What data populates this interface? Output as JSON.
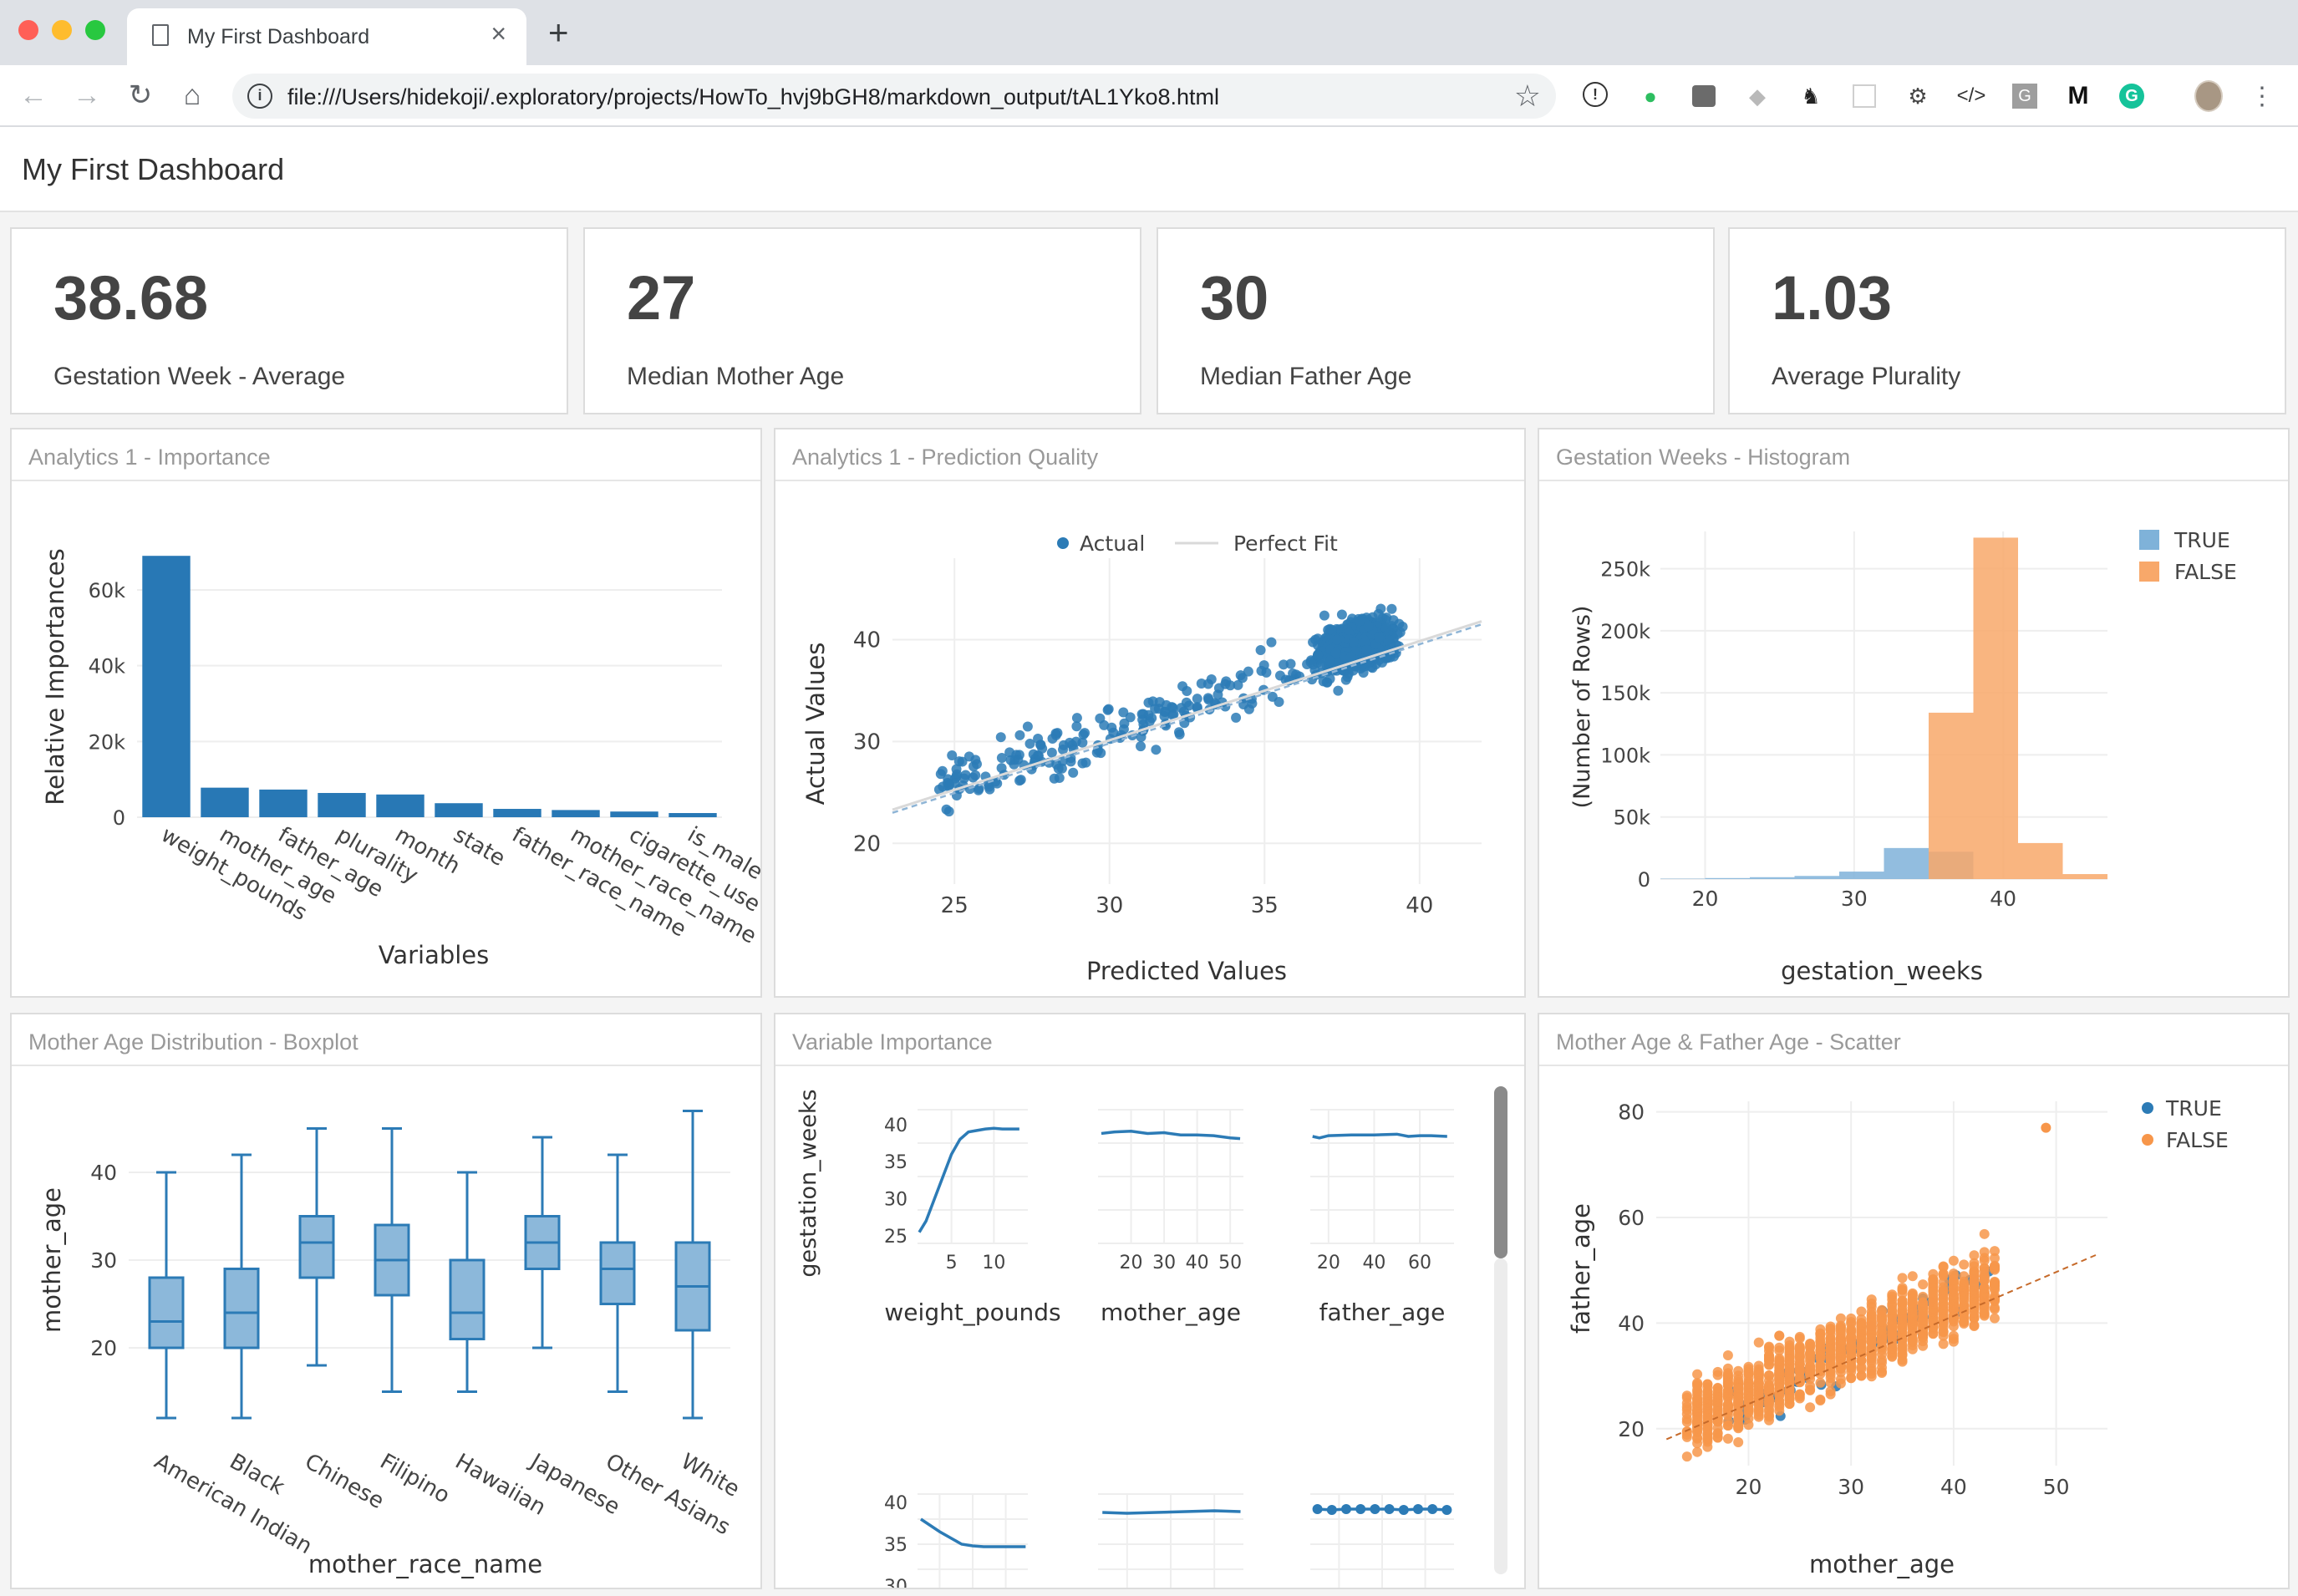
{
  "browser": {
    "tab_title": "My First Dashboard",
    "url": "file:///Users/hidekoji/.exploratory/projects/HowTo_hvj9bGH8/markdown_output/tAL1Yko8.html"
  },
  "page": {
    "title": "My First Dashboard"
  },
  "value_boxes": [
    {
      "value": "38.68",
      "caption": "Gestation Week - Average"
    },
    {
      "value": "27",
      "caption": "Median Mother Age"
    },
    {
      "value": "30",
      "caption": "Median Father Age"
    },
    {
      "value": "1.03",
      "caption": "Average Plurality"
    }
  ],
  "cards": {
    "importance": "Analytics 1 - Importance",
    "prediction": "Analytics 1 - Prediction Quality",
    "histogram": "Gestation Weeks - Histogram",
    "boxplot": "Mother Age Distribution - Boxplot",
    "varimp": "Variable Importance",
    "scatter": "Mother Age & Father Age - Scatter"
  },
  "colors": {
    "blue": "#2c7bb6",
    "blue_bar": "#2878b5",
    "orange": "#f7964a",
    "light_blue": "#7fb2d9",
    "orange_bar": "#f8a86a"
  },
  "chart_data": [
    {
      "id": "importance",
      "type": "bar",
      "xlabel": "Variables",
      "ylabel": "Relative Importances",
      "ylim": [
        0,
        75000
      ],
      "yticks": [
        "0",
        "20k",
        "40k",
        "60k"
      ],
      "categories": [
        "weight_pounds",
        "mother_age",
        "father_age",
        "plurality",
        "month",
        "state",
        "father_race_name",
        "mother_race_name",
        "cigarette_use",
        "is_male"
      ],
      "values": [
        69000,
        7800,
        7300,
        6400,
        6000,
        3700,
        2200,
        1900,
        1500,
        1100
      ]
    },
    {
      "id": "prediction",
      "type": "scatter",
      "xlabel": "Predicted Values",
      "ylabel": "Actual Values",
      "legend": [
        "Actual",
        "Perfect Fit"
      ],
      "xlim": [
        23,
        42
      ],
      "ylim": [
        16,
        48
      ],
      "xticks": [
        25,
        30,
        35,
        40
      ],
      "yticks": [
        20,
        30,
        40
      ]
    },
    {
      "id": "histogram",
      "type": "bar",
      "xlabel": "gestation_weeks",
      "ylabel": "(Number of Rows)",
      "legend": [
        "TRUE",
        "FALSE"
      ],
      "xlim": [
        17,
        47
      ],
      "ylim": [
        0,
        280000
      ],
      "xticks": [
        20,
        30,
        40
      ],
      "yticks": [
        "0",
        "50k",
        "100k",
        "150k",
        "200k",
        "250k"
      ],
      "bin_edges": [
        17,
        20,
        23,
        26,
        29,
        32,
        35,
        38,
        41,
        44,
        47
      ],
      "series": [
        {
          "name": "TRUE",
          "values": [
            300,
            800,
            1500,
            2500,
            6000,
            25000,
            22000,
            0,
            0,
            0
          ]
        },
        {
          "name": "FALSE",
          "values": [
            0,
            0,
            0,
            0,
            0,
            0,
            134000,
            275000,
            29000,
            4000
          ]
        }
      ]
    },
    {
      "id": "boxplot",
      "type": "box",
      "xlabel": "mother_race_name",
      "ylabel": "mother_age",
      "ylim": [
        10,
        50
      ],
      "yticks": [
        20,
        30,
        40
      ],
      "categories": [
        "American Indian",
        "Black",
        "Chinese",
        "Filipino",
        "Hawaiian",
        "Japanese",
        "Other Asians",
        "White"
      ],
      "boxes": [
        {
          "min": 12,
          "q1": 20,
          "median": 23,
          "q3": 28,
          "max": 40
        },
        {
          "min": 12,
          "q1": 20,
          "median": 24,
          "q3": 29,
          "max": 42
        },
        {
          "min": 18,
          "q1": 28,
          "median": 32,
          "q3": 35,
          "max": 45
        },
        {
          "min": 15,
          "q1": 26,
          "median": 30,
          "q3": 34,
          "max": 45
        },
        {
          "min": 15,
          "q1": 21,
          "median": 24,
          "q3": 30,
          "max": 40
        },
        {
          "min": 20,
          "q1": 29,
          "median": 32,
          "q3": 35,
          "max": 44
        },
        {
          "min": 15,
          "q1": 25,
          "median": 29,
          "q3": 32,
          "max": 42
        },
        {
          "min": 12,
          "q1": 22,
          "median": 27,
          "q3": 32,
          "max": 47
        }
      ]
    },
    {
      "id": "varimp",
      "type": "line",
      "ylabel": "gestation_weeks",
      "panels": [
        {
          "name": "weight_pounds",
          "xlim": [
            1,
            14
          ],
          "xticks": [
            5,
            10
          ],
          "ylim": [
            24,
            42
          ],
          "yticks": [
            25,
            30,
            35,
            40
          ],
          "x": [
            1.2,
            2,
            3,
            4,
            5,
            6,
            7,
            8,
            9,
            10,
            11,
            12,
            13
          ],
          "y": [
            25.5,
            27,
            30,
            33,
            36,
            38,
            39,
            39.2,
            39.4,
            39.5,
            39.4,
            39.4,
            39.4
          ]
        },
        {
          "name": "mother_age",
          "xlim": [
            10,
            54
          ],
          "xticks": [
            20,
            30,
            40,
            50
          ],
          "ylim": [
            24,
            42
          ],
          "x": [
            11,
            15,
            20,
            25,
            30,
            35,
            40,
            45,
            50,
            53
          ],
          "y": [
            38.8,
            39,
            39.1,
            38.8,
            38.9,
            38.6,
            38.6,
            38.5,
            38.2,
            38.1
          ]
        },
        {
          "name": "father_age",
          "xlim": [
            12,
            75
          ],
          "xticks": [
            20,
            40,
            60
          ],
          "ylim": [
            24,
            42
          ],
          "x": [
            13,
            16,
            20,
            30,
            40,
            50,
            55,
            60,
            65,
            72
          ],
          "y": [
            38.4,
            38.2,
            38.5,
            38.6,
            38.6,
            38.7,
            38.4,
            38.5,
            38.5,
            38.4
          ]
        },
        {
          "name": "",
          "xlim": [
            0,
            10
          ],
          "ylim": [
            29,
            41
          ],
          "yticks": [
            30,
            35,
            40
          ],
          "x": [
            0.3,
            2,
            4,
            5,
            6,
            8,
            9.8
          ],
          "y": [
            38,
            36.5,
            35,
            34.8,
            34.7,
            34.7,
            34.7
          ]
        },
        {
          "name": "",
          "xlim": [
            0,
            10
          ],
          "ylim": [
            29,
            41
          ],
          "x": [
            0.3,
            2,
            4,
            6,
            8,
            9.8
          ],
          "y": [
            38.8,
            38.7,
            38.8,
            38.9,
            39,
            38.9
          ]
        },
        {
          "name": "",
          "xlim": [
            0,
            10
          ],
          "ylim": [
            29,
            41
          ],
          "marker": true,
          "x": [
            0.5,
            1.5,
            2.5,
            3.5,
            4.5,
            5.5,
            6.5,
            7.5,
            8.5,
            9.5
          ],
          "y": [
            39.2,
            39.1,
            39.2,
            39.2,
            39.2,
            39.2,
            39.1,
            39.2,
            39.2,
            39.1
          ]
        }
      ]
    },
    {
      "id": "scatter",
      "type": "scatter",
      "xlabel": "mother_age",
      "ylabel": "father_age",
      "legend": [
        "TRUE",
        "FALSE"
      ],
      "xlim": [
        11,
        55
      ],
      "ylim": [
        13,
        82
      ],
      "xticks": [
        20,
        30,
        40,
        50
      ],
      "yticks": [
        20,
        40,
        60,
        80
      ]
    }
  ]
}
